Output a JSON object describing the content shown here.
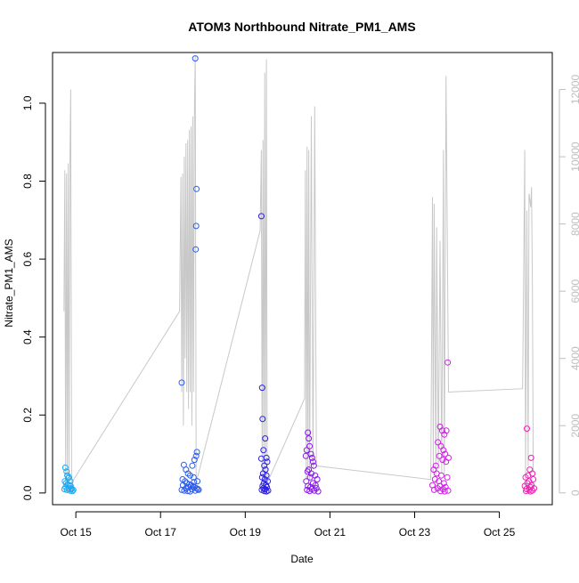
{
  "chart_data": {
    "type": "scatter",
    "title": "ATOM3 Northbound Nitrate_PM1_AMS",
    "xlabel": "Date",
    "ylabel": "Nitrate_PM1_AMS",
    "x_ticks": [
      "Oct 15",
      "Oct 17",
      "Oct 19",
      "Oct 21",
      "Oct 23",
      "Oct 25"
    ],
    "x_tick_days": [
      15,
      17,
      19,
      21,
      23,
      25
    ],
    "xlim": [
      14.45,
      26.25
    ],
    "ylim": [
      -0.03,
      1.13
    ],
    "y_ticks": [
      "0.0",
      "0.2",
      "0.4",
      "0.6",
      "0.8",
      "1.0"
    ],
    "y_tick_values": [
      0,
      0.2,
      0.4,
      0.6,
      0.8,
      1.0
    ],
    "y2lim": [
      -350,
      13100
    ],
    "y2_ticks": [
      "0",
      "2000",
      "4000",
      "6000",
      "8000",
      "10000",
      "12000"
    ],
    "y2_tick_values": [
      0,
      2000,
      4000,
      6000,
      8000,
      10000,
      12000
    ],
    "colors": {
      "altitude_line": "#c8c8c8",
      "right_axis": "#bdbdbd",
      "flight1": "#1ea8f2",
      "flight2": "#2a5cf0",
      "flight3": "#2a1ee8",
      "flight4": "#8a16ee",
      "flight5": "#d21ee8",
      "flight6": "#f21eb4"
    },
    "series": [
      {
        "color_key": "flight1",
        "points": [
          [
            14.75,
            0.065
          ],
          [
            14.78,
            0.055
          ],
          [
            14.8,
            0.045
          ],
          [
            14.82,
            0.038
          ],
          [
            14.74,
            0.03
          ],
          [
            14.77,
            0.025
          ],
          [
            14.85,
            0.02
          ],
          [
            14.88,
            0.018
          ],
          [
            14.83,
            0.012
          ],
          [
            14.9,
            0.01
          ],
          [
            14.79,
            0.008
          ],
          [
            14.86,
            0.006
          ],
          [
            14.92,
            0.005
          ],
          [
            14.76,
            0.015
          ],
          [
            14.81,
            0.022
          ],
          [
            14.87,
            0.03
          ],
          [
            14.84,
            0.04
          ],
          [
            14.89,
            0.012
          ],
          [
            14.94,
            0.008
          ],
          [
            14.73,
            0.01
          ]
        ]
      },
      {
        "color_key": "flight2",
        "points": [
          [
            17.82,
            1.115
          ],
          [
            17.85,
            0.78
          ],
          [
            17.84,
            0.685
          ],
          [
            17.83,
            0.625
          ],
          [
            17.5,
            0.283
          ],
          [
            17.86,
            0.105
          ],
          [
            17.84,
            0.095
          ],
          [
            17.8,
            0.085
          ],
          [
            17.75,
            0.07
          ],
          [
            17.55,
            0.072
          ],
          [
            17.6,
            0.06
          ],
          [
            17.65,
            0.05
          ],
          [
            17.7,
            0.045
          ],
          [
            17.78,
            0.04
          ],
          [
            17.52,
            0.035
          ],
          [
            17.58,
            0.03
          ],
          [
            17.62,
            0.025
          ],
          [
            17.68,
            0.022
          ],
          [
            17.72,
            0.02
          ],
          [
            17.76,
            0.018
          ],
          [
            17.8,
            0.015
          ],
          [
            17.85,
            0.012
          ],
          [
            17.88,
            0.01
          ],
          [
            17.5,
            0.008
          ],
          [
            17.56,
            0.006
          ],
          [
            17.64,
            0.005
          ],
          [
            17.7,
            0.004
          ],
          [
            17.82,
            0.006
          ],
          [
            17.9,
            0.008
          ],
          [
            17.6,
            0.012
          ],
          [
            17.66,
            0.015
          ],
          [
            17.74,
            0.01
          ],
          [
            17.53,
            0.02
          ],
          [
            17.87,
            0.03
          ],
          [
            17.79,
            0.028
          ]
        ]
      },
      {
        "color_key": "flight3",
        "points": [
          [
            19.38,
            0.71
          ],
          [
            19.4,
            0.27
          ],
          [
            19.41,
            0.19
          ],
          [
            19.47,
            0.14
          ],
          [
            19.43,
            0.11
          ],
          [
            19.38,
            0.088
          ],
          [
            19.5,
            0.09
          ],
          [
            19.52,
            0.08
          ],
          [
            19.45,
            0.07
          ],
          [
            19.48,
            0.06
          ],
          [
            19.42,
            0.05
          ],
          [
            19.5,
            0.045
          ],
          [
            19.4,
            0.04
          ],
          [
            19.46,
            0.035
          ],
          [
            19.53,
            0.03
          ],
          [
            19.44,
            0.025
          ],
          [
            19.49,
            0.02
          ],
          [
            19.41,
            0.018
          ],
          [
            19.51,
            0.015
          ],
          [
            19.43,
            0.012
          ],
          [
            19.47,
            0.01
          ],
          [
            19.39,
            0.008
          ],
          [
            19.54,
            0.006
          ],
          [
            19.45,
            0.005
          ],
          [
            19.5,
            0.004
          ]
        ]
      },
      {
        "color_key": "flight4",
        "points": [
          [
            20.48,
            0.155
          ],
          [
            20.5,
            0.14
          ],
          [
            20.52,
            0.12
          ],
          [
            20.45,
            0.11
          ],
          [
            20.55,
            0.1
          ],
          [
            20.43,
            0.095
          ],
          [
            20.58,
            0.09
          ],
          [
            20.6,
            0.08
          ],
          [
            20.62,
            0.07
          ],
          [
            20.5,
            0.06
          ],
          [
            20.47,
            0.055
          ],
          [
            20.56,
            0.05
          ],
          [
            20.65,
            0.045
          ],
          [
            20.53,
            0.04
          ],
          [
            20.7,
            0.035
          ],
          [
            20.44,
            0.03
          ],
          [
            20.6,
            0.025
          ],
          [
            20.66,
            0.02
          ],
          [
            20.48,
            0.018
          ],
          [
            20.54,
            0.015
          ],
          [
            20.68,
            0.012
          ],
          [
            20.57,
            0.01
          ],
          [
            20.46,
            0.008
          ],
          [
            20.63,
            0.006
          ],
          [
            20.52,
            0.005
          ],
          [
            20.72,
            0.004
          ]
        ]
      },
      {
        "color_key": "flight5",
        "points": [
          [
            23.78,
            0.335
          ],
          [
            23.6,
            0.17
          ],
          [
            23.65,
            0.16
          ],
          [
            23.7,
            0.15
          ],
          [
            23.75,
            0.16
          ],
          [
            23.55,
            0.13
          ],
          [
            23.62,
            0.12
          ],
          [
            23.68,
            0.11
          ],
          [
            23.72,
            0.1
          ],
          [
            23.58,
            0.095
          ],
          [
            23.8,
            0.09
          ],
          [
            23.66,
            0.085
          ],
          [
            23.5,
            0.07
          ],
          [
            23.74,
            0.08
          ],
          [
            23.45,
            0.06
          ],
          [
            23.52,
            0.05
          ],
          [
            23.63,
            0.045
          ],
          [
            23.77,
            0.04
          ],
          [
            23.48,
            0.035
          ],
          [
            23.57,
            0.03
          ],
          [
            23.69,
            0.025
          ],
          [
            23.42,
            0.02
          ],
          [
            23.6,
            0.018
          ],
          [
            23.73,
            0.015
          ],
          [
            23.54,
            0.012
          ],
          [
            23.67,
            0.01
          ],
          [
            23.46,
            0.008
          ],
          [
            23.79,
            0.006
          ],
          [
            23.61,
            0.005
          ],
          [
            23.71,
            0.004
          ]
        ]
      },
      {
        "color_key": "flight6",
        "points": [
          [
            25.65,
            0.165
          ],
          [
            25.75,
            0.09
          ],
          [
            25.72,
            0.06
          ],
          [
            25.78,
            0.05
          ],
          [
            25.68,
            0.045
          ],
          [
            25.62,
            0.04
          ],
          [
            25.8,
            0.035
          ],
          [
            25.7,
            0.03
          ],
          [
            25.66,
            0.025
          ],
          [
            25.76,
            0.02
          ],
          [
            25.6,
            0.018
          ],
          [
            25.74,
            0.015
          ],
          [
            25.82,
            0.012
          ],
          [
            25.64,
            0.01
          ],
          [
            25.7,
            0.008
          ],
          [
            25.78,
            0.006
          ],
          [
            25.63,
            0.005
          ],
          [
            25.73,
            0.004
          ]
        ]
      }
    ],
    "altitude_series": {
      "y_axis": "right",
      "points": [
        [
          14.72,
          5400
        ],
        [
          14.74,
          9600
        ],
        [
          14.76,
          300
        ],
        [
          14.78,
          9500
        ],
        [
          14.8,
          600
        ],
        [
          14.82,
          9800
        ],
        [
          14.84,
          400
        ],
        [
          14.86,
          9900
        ],
        [
          14.88,
          12000
        ],
        [
          14.9,
          300
        ],
        [
          17.45,
          5400
        ],
        [
          17.48,
          9400
        ],
        [
          17.5,
          3000
        ],
        [
          17.52,
          9500
        ],
        [
          17.54,
          2000
        ],
        [
          17.56,
          10000
        ],
        [
          17.58,
          4000
        ],
        [
          17.6,
          10400
        ],
        [
          17.62,
          3000
        ],
        [
          17.64,
          10500
        ],
        [
          17.66,
          2500
        ],
        [
          17.68,
          10800
        ],
        [
          17.7,
          3000
        ],
        [
          17.72,
          10900
        ],
        [
          17.74,
          2000
        ],
        [
          17.76,
          11200
        ],
        [
          17.78,
          3000
        ],
        [
          17.8,
          11400
        ],
        [
          17.82,
          13000
        ],
        [
          17.84,
          500
        ],
        [
          17.86,
          400
        ],
        [
          19.35,
          7800
        ],
        [
          19.38,
          10200
        ],
        [
          19.4,
          500
        ],
        [
          19.42,
          10500
        ],
        [
          19.44,
          300
        ],
        [
          19.46,
          12500
        ],
        [
          19.48,
          400
        ],
        [
          19.5,
          12900
        ],
        [
          19.52,
          300
        ],
        [
          20.4,
          2800
        ],
        [
          20.42,
          9600
        ],
        [
          20.44,
          400
        ],
        [
          20.46,
          10300
        ],
        [
          20.48,
          600
        ],
        [
          20.5,
          10200
        ],
        [
          20.52,
          400
        ],
        [
          20.56,
          11200
        ],
        [
          20.6,
          700
        ],
        [
          20.64,
          11500
        ],
        [
          20.68,
          800
        ],
        [
          20.72,
          800
        ],
        [
          23.38,
          400
        ],
        [
          23.42,
          8800
        ],
        [
          23.44,
          600
        ],
        [
          23.46,
          8600
        ],
        [
          23.5,
          500
        ],
        [
          23.52,
          7900
        ],
        [
          23.56,
          700
        ],
        [
          23.6,
          7500
        ],
        [
          23.64,
          600
        ],
        [
          23.68,
          10200
        ],
        [
          23.7,
          500
        ],
        [
          23.74,
          12400
        ],
        [
          23.76,
          9500
        ],
        [
          23.8,
          3000
        ],
        [
          25.55,
          3100
        ],
        [
          25.6,
          10200
        ],
        [
          25.62,
          400
        ],
        [
          25.65,
          8400
        ],
        [
          25.68,
          800
        ],
        [
          25.7,
          8900
        ],
        [
          25.74,
          8500
        ],
        [
          25.76,
          9100
        ],
        [
          25.78,
          6100
        ],
        [
          25.8,
          600
        ]
      ]
    }
  }
}
